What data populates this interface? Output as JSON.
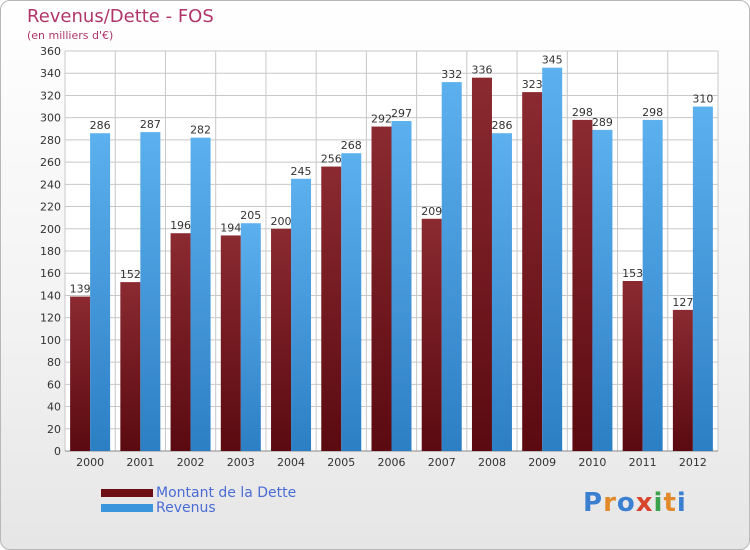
{
  "title": "Revenus/Dette - FOS",
  "subtitle": "(en milliers d'€)",
  "logo": {
    "text": "Proxiti",
    "letter_colors": [
      "#3a7fd0",
      "#e28a2b",
      "#3a7fd0",
      "#d8452d",
      "#3aa24a",
      "#e28a2b",
      "#3a7fd0"
    ]
  },
  "legend": [
    {
      "label": "Montant de la Dette",
      "color": "#6e0f15"
    },
    {
      "label": "Revenus",
      "color": "#3a95dc"
    }
  ],
  "chart_data": {
    "type": "bar",
    "title": "Revenus/Dette - FOS",
    "subtitle": "(en milliers d'€)",
    "categories": [
      "2000",
      "2001",
      "2002",
      "2003",
      "2004",
      "2005",
      "2006",
      "2007",
      "2008",
      "2009",
      "2010",
      "2011",
      "2012"
    ],
    "series": [
      {
        "name": "Montant de la Dette",
        "color": "#7a1c22",
        "values": [
          139,
          152,
          196,
          194,
          200,
          256,
          292,
          209,
          336,
          323,
          298,
          153,
          127
        ]
      },
      {
        "name": "Revenus",
        "color": "#4aa3e6",
        "values": [
          286,
          287,
          282,
          205,
          245,
          268,
          297,
          332,
          286,
          345,
          289,
          298,
          310
        ]
      }
    ],
    "ylim": [
      0,
      360
    ],
    "yticks": [
      0,
      20,
      40,
      60,
      80,
      100,
      120,
      140,
      160,
      180,
      200,
      220,
      240,
      260,
      280,
      300,
      320,
      340,
      360
    ],
    "grid": true,
    "legend_position": "bottom-left"
  }
}
